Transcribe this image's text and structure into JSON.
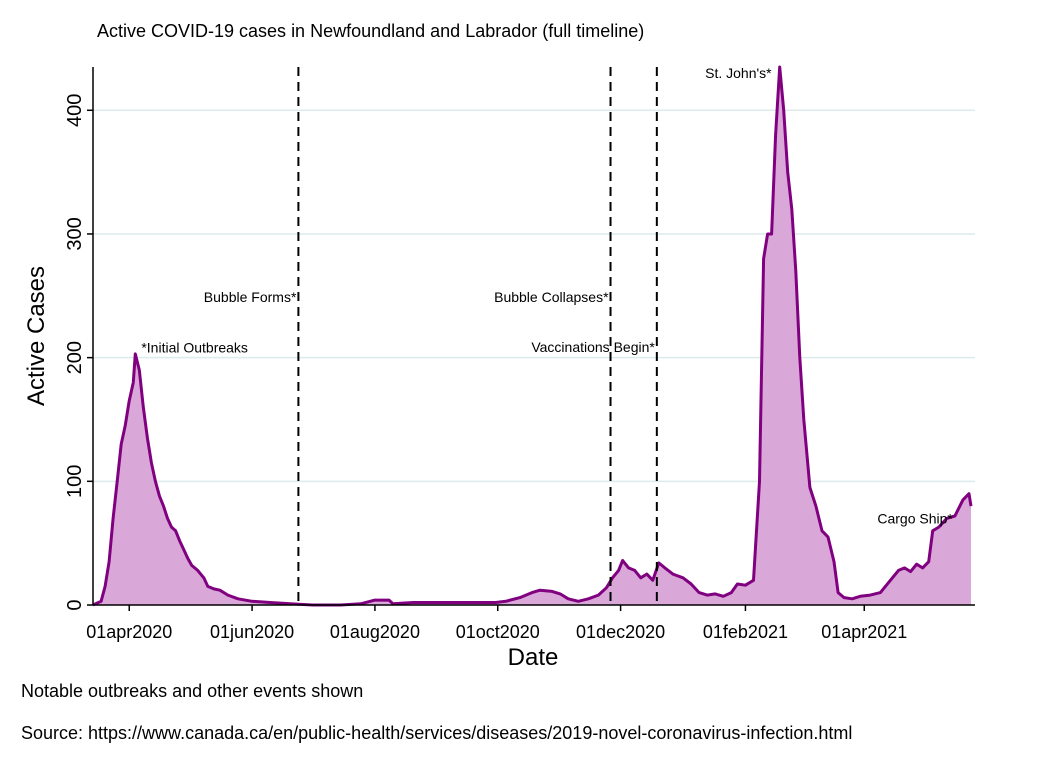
{
  "chart_data": {
    "type": "area",
    "title": "Active COVID-19 cases in Newfoundland and Labrador (full timeline)",
    "xlabel": "Date",
    "ylabel": "Active Cases",
    "ylim": [
      0,
      435
    ],
    "xlim": [
      "2020-03-14",
      "2021-05-26"
    ],
    "yticks": [
      0,
      100,
      200,
      300,
      400
    ],
    "xticks": [
      {
        "date": "2020-04-01",
        "label": "01apr2020"
      },
      {
        "date": "2020-06-01",
        "label": "01jun2020"
      },
      {
        "date": "2020-08-01",
        "label": "01aug2020"
      },
      {
        "date": "2020-10-01",
        "label": "01oct2020"
      },
      {
        "date": "2020-12-01",
        "label": "01dec2020"
      },
      {
        "date": "2021-02-01",
        "label": "01feb2021"
      },
      {
        "date": "2021-04-01",
        "label": "01apr2021"
      }
    ],
    "grid": true,
    "colors": {
      "line": "#800080",
      "fill": "#d9a8d9",
      "grid": "#dcebeb"
    },
    "series": [
      {
        "points": [
          [
            "2020-03-14",
            0
          ],
          [
            "2020-03-18",
            3
          ],
          [
            "2020-03-20",
            15
          ],
          [
            "2020-03-22",
            35
          ],
          [
            "2020-03-24",
            70
          ],
          [
            "2020-03-26",
            100
          ],
          [
            "2020-03-28",
            130
          ],
          [
            "2020-03-30",
            145
          ],
          [
            "2020-04-01",
            165
          ],
          [
            "2020-04:03",
            180
          ],
          [
            "2020-04-04",
            203
          ],
          [
            "2020-04-06",
            190
          ],
          [
            "2020-04-08",
            160
          ],
          [
            "2020-04-10",
            135
          ],
          [
            "2020-04-12",
            115
          ],
          [
            "2020-04-14",
            100
          ],
          [
            "2020-04-16",
            88
          ],
          [
            "2020-04-18",
            80
          ],
          [
            "2020-04-20",
            70
          ],
          [
            "2020-04-22",
            63
          ],
          [
            "2020-04-24",
            60
          ],
          [
            "2020-04-26",
            52
          ],
          [
            "2020-04-28",
            45
          ],
          [
            "2020-04-30",
            38
          ],
          [
            "2020-05-02",
            32
          ],
          [
            "2020-05-05",
            28
          ],
          [
            "2020-05-08",
            22
          ],
          [
            "2020-05-10",
            15
          ],
          [
            "2020-05-13",
            13
          ],
          [
            "2020-05-16",
            12
          ],
          [
            "2020-05-20",
            8
          ],
          [
            "2020-05-25",
            5
          ],
          [
            "2020-06-01",
            3
          ],
          [
            "2020-06-10",
            2
          ],
          [
            "2020-06-20",
            1
          ],
          [
            "2020-07-01",
            0
          ],
          [
            "2020-07-15",
            0
          ],
          [
            "2020-07-25",
            1
          ],
          [
            "2020-08-01",
            4
          ],
          [
            "2020-08-08",
            4
          ],
          [
            "2020-08-10",
            1
          ],
          [
            "2020-08-20",
            2
          ],
          [
            "2020-08-31",
            2
          ],
          [
            "2020-09-15",
            2
          ],
          [
            "2020-09-30",
            2
          ],
          [
            "2020-10-05",
            3
          ],
          [
            "2020-10-12",
            6
          ],
          [
            "2020-10-18",
            10
          ],
          [
            "2020-10-22",
            12
          ],
          [
            "2020-10-28",
            11
          ],
          [
            "2020-11-01",
            9
          ],
          [
            "2020-11-05",
            5
          ],
          [
            "2020-11-10",
            3
          ],
          [
            "2020-11-15",
            5
          ],
          [
            "2020-11-20",
            8
          ],
          [
            "2020-11-24",
            14
          ],
          [
            "2020-11-27",
            22
          ],
          [
            "2020-11-30",
            28
          ],
          [
            "2020-12-02",
            36
          ],
          [
            "2020-12-05",
            30
          ],
          [
            "2020-12-08",
            28
          ],
          [
            "2020-12-11",
            22
          ],
          [
            "2020-12-14",
            25
          ],
          [
            "2020-12-17",
            20
          ],
          [
            "2020-12-20",
            34
          ],
          [
            "2020-12-23",
            30
          ],
          [
            "2020-12-27",
            25
          ],
          [
            "2021-01-01",
            22
          ],
          [
            "2021-01-05",
            17
          ],
          [
            "2021-01-09",
            10
          ],
          [
            "2021-01-13",
            8
          ],
          [
            "2021-01-17",
            9
          ],
          [
            "2021-01-21",
            7
          ],
          [
            "2021-01-25",
            10
          ],
          [
            "2021-01-28",
            17
          ],
          [
            "2021-02-01",
            16
          ],
          [
            "2021-02-05",
            20
          ],
          [
            "2021-02-08",
            100
          ],
          [
            "2021-02-10",
            280
          ],
          [
            "2021-02-12",
            300
          ],
          [
            "2021-02-14",
            300
          ],
          [
            "2021-02-16",
            380
          ],
          [
            "2021-02-18",
            435
          ],
          [
            "2021-02-20",
            400
          ],
          [
            "2021-02-22",
            350
          ],
          [
            "2021-02-24",
            320
          ],
          [
            "2021-02-26",
            270
          ],
          [
            "2021-02-28",
            200
          ],
          [
            "2021-03-02",
            150
          ],
          [
            "2021-03-05",
            95
          ],
          [
            "2021-03-08",
            80
          ],
          [
            "2021-03-11",
            60
          ],
          [
            "2021-03-14",
            55
          ],
          [
            "2021-03-17",
            35
          ],
          [
            "2021-03-19",
            10
          ],
          [
            "2021-03-22",
            6
          ],
          [
            "2021-03-26",
            5
          ],
          [
            "2021-03-30",
            7
          ],
          [
            "2021-04-04",
            8
          ],
          [
            "2021-04-09",
            10
          ],
          [
            "2021-04-14",
            20
          ],
          [
            "2021-04-18",
            28
          ],
          [
            "2021-04-21",
            30
          ],
          [
            "2021-04-24",
            27
          ],
          [
            "2021-04-27",
            33
          ],
          [
            "2021-04-30",
            30
          ],
          [
            "2021-05-03",
            35
          ],
          [
            "2021-05-05",
            60
          ],
          [
            "2021-05-08",
            63
          ],
          [
            "2021-05-12",
            70
          ],
          [
            "2021-05-16",
            72
          ],
          [
            "2021-05-20",
            85
          ],
          [
            "2021-05-23",
            90
          ],
          [
            "2021-05-24",
            80
          ]
        ]
      }
    ],
    "events": [
      {
        "date": "2020-06-24",
        "label": "Bubble Forms*"
      },
      {
        "date": "2020-11-26",
        "label": "Bubble Collapses*"
      },
      {
        "date": "2020-12-19",
        "label": "Vaccinations Begin*"
      }
    ],
    "annotations": [
      {
        "label": "*Initial Outbreaks",
        "date": "2020-04-07",
        "y": 208,
        "anchor": "start"
      },
      {
        "label": "St. John's*",
        "date": "2021-02-14",
        "y": 430,
        "anchor": "end"
      },
      {
        "label": "Cargo Ship*",
        "date": "2021-05-15",
        "y": 70,
        "anchor": "end"
      }
    ]
  },
  "notes": {
    "events_note": "Notable outbreaks and other events shown",
    "source": "Source: https://www.canada.ca/en/public-health/services/diseases/2019-novel-coronavirus-infection.html"
  }
}
